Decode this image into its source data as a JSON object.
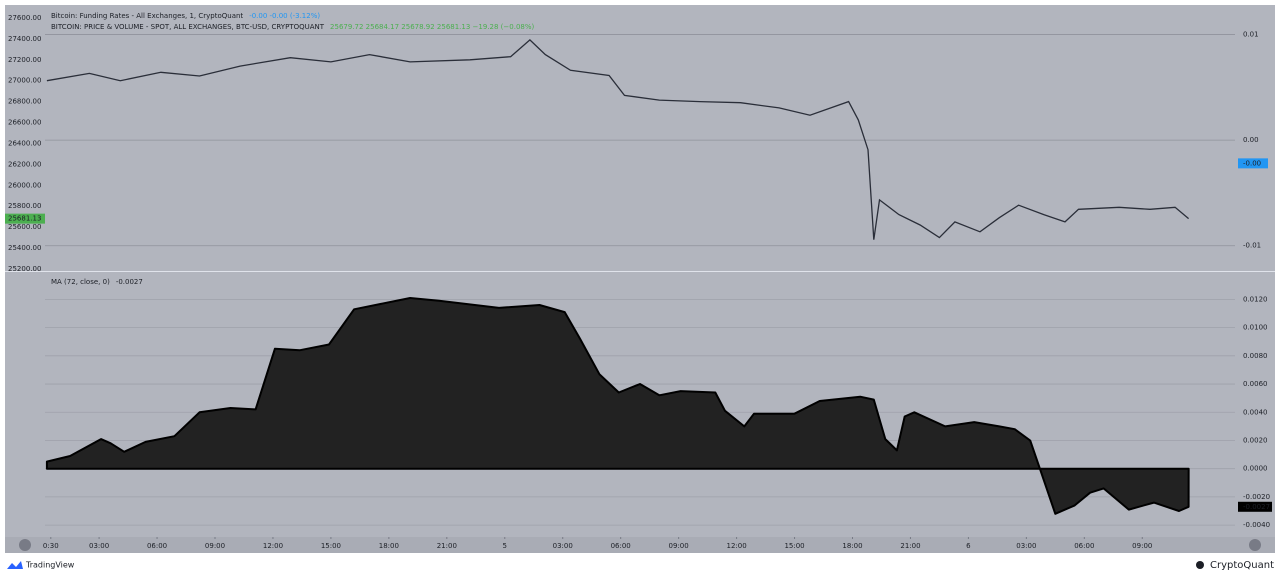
{
  "chart_data": [
    {
      "type": "line",
      "title": "Bitcoin: Funding Rates - All Exchanges, 1, CryptoQuant",
      "title_values": "-0.00  -0.00 (-3.12%)",
      "subtitle": "BITCOIN: PRICE & VOLUME - SPOT, ALL EXCHANGES, BTC-USD, CRYPTOQUANT",
      "subtitle_values": "25679.72  25684.17  25678.92  25681.13  −19.28 (−0.08%)",
      "x": [
        0.3,
        2.5,
        4.1,
        6.2,
        8.2,
        10.3,
        12.9,
        15.0,
        17.0,
        19.1,
        22.2,
        24.3,
        25.3,
        26.1,
        27.4,
        29.4,
        30.2,
        32.0,
        34.1,
        36.2,
        38.2,
        39.8,
        41.8,
        42.3,
        42.8,
        43.1,
        43.4,
        44.4,
        45.5,
        46.5,
        47.3,
        48.6,
        49.6,
        50.6,
        51.9,
        53.0,
        53.7,
        55.8,
        57.4,
        58.7,
        59.4
      ],
      "series": [
        {
          "color": "#2a2e39",
          "values": [
            27000,
            27070,
            27000,
            27080,
            27045,
            27140,
            27220,
            27180,
            27250,
            27180,
            27200,
            27230,
            27390,
            27250,
            27100,
            27050,
            26860,
            26815,
            26800,
            26790,
            26740,
            26670,
            26800,
            26625,
            26340,
            25480,
            25860,
            25720,
            25620,
            25500,
            25650,
            25555,
            25690,
            25810,
            25720,
            25650,
            25770,
            25790,
            25770,
            25790,
            25681.13
          ]
        }
      ],
      "xlim": [
        0.2,
        61.8
      ],
      "ylim": [
        25190,
        27724
      ],
      "yticks": [
        {
          "value": 25200,
          "label": "25200.00"
        },
        {
          "value": 25400,
          "label": "25400.00"
        },
        {
          "value": 25600,
          "label": "25600.00"
        },
        {
          "value": 25800,
          "label": "25800.00"
        },
        {
          "value": 26000,
          "label": "26000.00"
        },
        {
          "value": 26200,
          "label": "26200.00"
        },
        {
          "value": 26400,
          "label": "26400.00"
        },
        {
          "value": 26600,
          "label": "26600.00"
        },
        {
          "value": 26800,
          "label": "26800.00"
        },
        {
          "value": 27000,
          "label": "27000.00"
        },
        {
          "value": 27200,
          "label": "27200.00"
        },
        {
          "value": 27400,
          "label": "27400.00"
        },
        {
          "value": 27600,
          "label": "27600.00"
        }
      ],
      "y2lim": [
        -0.0123,
        0.0128
      ],
      "y2ticks": [
        -0.01,
        {
          "value": 0,
          "label": "0.00"
        },
        0.01
      ],
      "last_value": 25681.13,
      "y2_marker": {
        "value": -0.0022,
        "label": "-0.00"
      }
    },
    {
      "type": "area",
      "title": "MA (72, close, 0)",
      "x": [
        0.3,
        1.5,
        3.1,
        3.6,
        4.3,
        5.4,
        6.9,
        8.2,
        9.8,
        11.1,
        12.1,
        13.4,
        14.9,
        16.2,
        19.1,
        20.6,
        23.7,
        25.8,
        27.1,
        27.9,
        28.9,
        29.9,
        31.0,
        32.0,
        33.1,
        34.9,
        35.4,
        36.4,
        36.9,
        39.0,
        40.3,
        42.4,
        43.1,
        43.7,
        44.3,
        44.7,
        45.2,
        46.8,
        48.3,
        49.6,
        50.4,
        51.2,
        51.7,
        52.5,
        53.5,
        54.3,
        55.0,
        56.3,
        57.6,
        58.9,
        59.4
      ],
      "values": [
        0.0005,
        0.0009,
        0.0021,
        0.0018,
        0.0012,
        0.0019,
        0.0023,
        0.004,
        0.0043,
        0.0042,
        0.0085,
        0.0084,
        0.0088,
        0.0113,
        0.0121,
        0.0119,
        0.0114,
        0.0116,
        0.0111,
        0.0092,
        0.0067,
        0.0054,
        0.006,
        0.0052,
        0.0055,
        0.0054,
        0.0041,
        0.003,
        0.0039,
        0.0039,
        0.0048,
        0.0051,
        0.0049,
        0.0021,
        0.0013,
        0.0037,
        0.004,
        0.003,
        0.0033,
        0.003,
        0.0028,
        0.002,
        0,
        -0.0032,
        -0.0026,
        -0.0017,
        -0.0014,
        -0.0029,
        -0.0024,
        -0.003,
        -0.0027
      ],
      "color": "#222222",
      "xlim": [
        0.2,
        61.8
      ],
      "ylim": [
        -0.0047,
        0.0138
      ],
      "yticks": [
        {
          "value": -0.004,
          "label": "-0.0040"
        },
        {
          "value": -0.002,
          "label": "-0.0020"
        },
        {
          "value": 0,
          "label": "0.0000"
        },
        {
          "value": 0.002,
          "label": "0.0020"
        },
        {
          "value": 0.004,
          "label": "0.0040"
        },
        {
          "value": 0.006,
          "label": "0.0060"
        },
        {
          "value": 0.008,
          "label": "0.0080"
        },
        {
          "value": 0.01,
          "label": "0.0100"
        },
        {
          "value": 0.012,
          "label": "0.0120"
        }
      ],
      "xticks": [
        {
          "value": 0.5,
          "label": "0:30"
        },
        {
          "value": 3,
          "label": "03:00"
        },
        {
          "value": 6,
          "label": "06:00"
        },
        {
          "value": 9,
          "label": "09:00"
        },
        {
          "value": 12,
          "label": "12:00"
        },
        {
          "value": 15,
          "label": "15:00"
        },
        {
          "value": 18,
          "label": "18:00"
        },
        {
          "value": 21,
          "label": "21:00"
        },
        {
          "value": 24,
          "label": "5"
        },
        {
          "value": 27,
          "label": "03:00"
        },
        {
          "value": 30,
          "label": "06:00"
        },
        {
          "value": 33,
          "label": "09:00"
        },
        {
          "value": 36,
          "label": "12:00"
        },
        {
          "value": 39,
          "label": "15:00"
        },
        {
          "value": 42,
          "label": "18:00"
        },
        {
          "value": 45,
          "label": "21:00"
        },
        {
          "value": 48,
          "label": "6"
        },
        {
          "value": 51,
          "label": "03:00"
        },
        {
          "value": 54,
          "label": "06:00"
        },
        {
          "value": 57,
          "label": "09:00"
        }
      ],
      "grid": true,
      "last_value": -0.0027
    }
  ],
  "footer": {
    "left": "TradingView",
    "right": "CryptoQuant"
  }
}
